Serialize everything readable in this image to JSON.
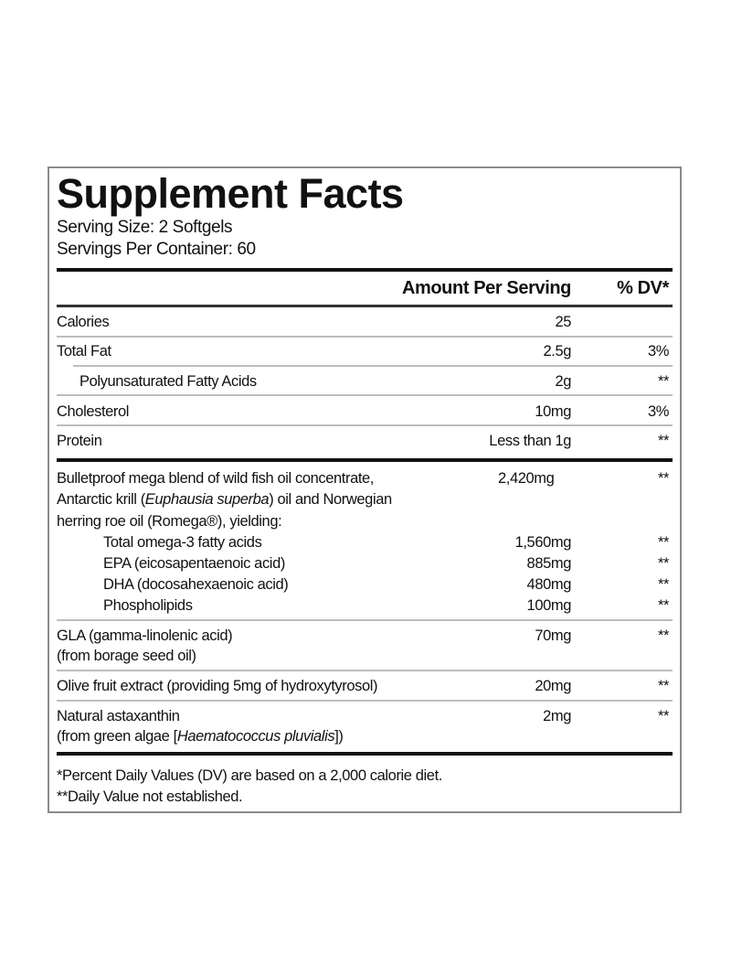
{
  "title": "Supplement Facts",
  "serving_size": "Serving Size: 2 Softgels",
  "servings_per_container": "Servings Per Container: 60",
  "header": {
    "amount": "Amount Per Serving",
    "dv": "% DV*"
  },
  "rows": [
    {
      "label": "Calories",
      "amount": "25",
      "dv": ""
    },
    {
      "label": "Total Fat",
      "amount": "2.5g",
      "dv": "3%"
    },
    {
      "label": "Polyunsaturated Fatty Acids",
      "amount": "2g",
      "dv": "**"
    },
    {
      "label": "Cholesterol",
      "amount": "10mg",
      "dv": "3%"
    },
    {
      "label": "Protein",
      "amount": "Less than 1g",
      "dv": "**"
    }
  ],
  "blend": {
    "line1": "Bulletproof mega blend of wild fish oil concentrate,",
    "line2_a": "Antarctic krill (",
    "line2_italic": "Euphausia superba",
    "line2_b": ") oil and Norwegian",
    "line3": "herring roe oil (Romega®), yielding:",
    "amount": "2,420mg",
    "dv": "**",
    "components": [
      {
        "label": "Total omega-3 fatty acids",
        "amount": "1,560mg",
        "dv": "**"
      },
      {
        "label": "EPA (eicosapentaenoic acid)",
        "amount": "885mg",
        "dv": "**"
      },
      {
        "label": "DHA (docosahexaenoic acid)",
        "amount": "480mg",
        "dv": "**"
      },
      {
        "label": "Phospholipids",
        "amount": "100mg",
        "dv": "**"
      }
    ]
  },
  "gla": {
    "line1": "GLA (gamma-linolenic acid)",
    "line2": "(from borage seed oil)",
    "amount": "70mg",
    "dv": "**"
  },
  "olive": {
    "label": "Olive fruit extract (providing 5mg of hydroxytyrosol)",
    "amount": "20mg",
    "dv": "**"
  },
  "astaxanthin": {
    "line1": "Natural astaxanthin",
    "line2_a": "(from green algae [",
    "line2_italic": "Haematococcus pluvialis",
    "line2_b": "])",
    "amount": "2mg",
    "dv": "**"
  },
  "footnotes": [
    "*Percent Daily Values (DV) are based on a 2,000 calorie diet.",
    "**Daily Value not established."
  ]
}
